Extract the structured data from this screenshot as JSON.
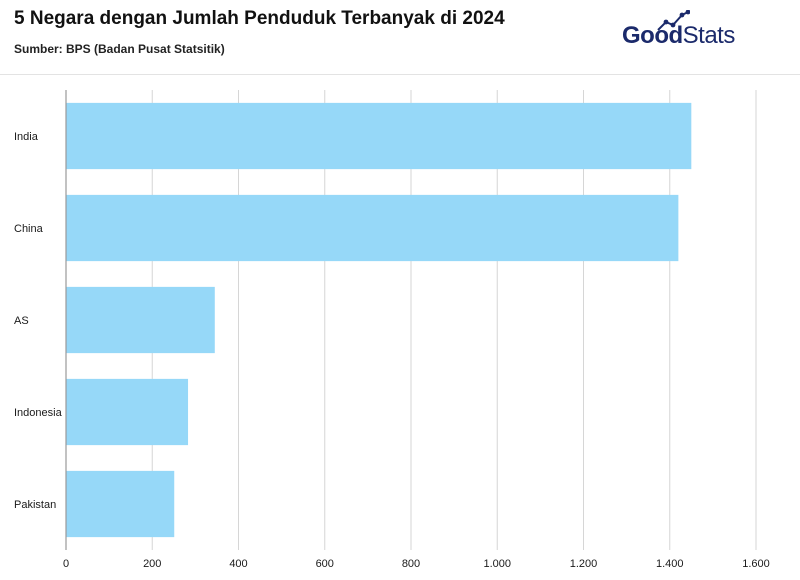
{
  "header": {
    "title": "5 Negara dengan Jumlah Penduduk Terbanyak di 2024",
    "subtitle": "Sumber: BPS (Badan Pusat Statsitik)"
  },
  "logo": {
    "part1": "Good",
    "part2": "Stats"
  },
  "colors": {
    "bar": "#96d8f8",
    "grid": "#d6d6d6",
    "axis": "#9a9a9a",
    "logo_text": "#1b2a6b"
  },
  "chart_data": {
    "type": "bar",
    "orientation": "horizontal",
    "categories": [
      "India",
      "China",
      "AS",
      "Indonesia",
      "Pakistan"
    ],
    "values": [
      1450,
      1420,
      345,
      283,
      251
    ],
    "xlim": [
      0,
      1600
    ],
    "ticks": [
      0,
      200,
      400,
      600,
      800,
      1000,
      1200,
      1400,
      1600
    ],
    "tick_labels": [
      "0",
      "200",
      "400",
      "600",
      "800",
      "1.000",
      "1.200",
      "1.400",
      "1.600"
    ],
    "grid": true,
    "legend": "none"
  }
}
